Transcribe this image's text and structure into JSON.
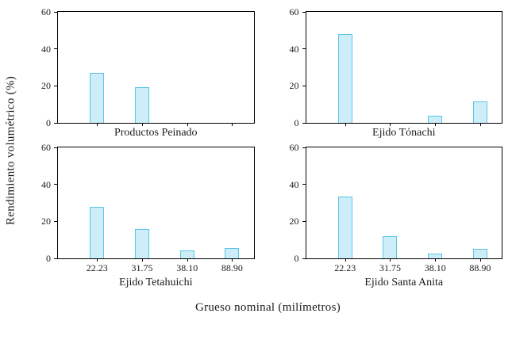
{
  "figure": {
    "ylabel": "Rendimiento volumétrico (%)",
    "xlabel": "Grueso nominal (milímetros)",
    "bar_fill": "#cdeef8",
    "bar_stroke": "#5bc6e8",
    "axis_color": "#000000"
  },
  "chart_data": [
    {
      "type": "bar",
      "title": "Productos Peinado",
      "categories": [
        "22.23",
        "31.75",
        "38.10",
        "88.90"
      ],
      "values": [
        27,
        19.5,
        0,
        0
      ],
      "ylim": [
        0,
        60
      ],
      "yticks": [
        0,
        20,
        40,
        60
      ],
      "x_ticklabels_visible": false,
      "grid": false,
      "legend": false
    },
    {
      "type": "bar",
      "title": "Ejido Tónachi",
      "categories": [
        "22.23",
        "31.75",
        "38.10",
        "88.90"
      ],
      "values": [
        48,
        0,
        4,
        11.5
      ],
      "ylim": [
        0,
        60
      ],
      "yticks": [
        0,
        20,
        40,
        60
      ],
      "x_ticklabels_visible": false,
      "grid": false,
      "legend": false
    },
    {
      "type": "bar",
      "title": "Ejido Tetahuichi",
      "categories": [
        "22.23",
        "31.75",
        "38.10",
        "88.90"
      ],
      "values": [
        28,
        16,
        4.5,
        5.5
      ],
      "ylim": [
        0,
        60
      ],
      "yticks": [
        0,
        20,
        40,
        60
      ],
      "x_ticklabels_visible": true,
      "grid": false,
      "legend": false
    },
    {
      "type": "bar",
      "title": "Ejido Santa Anita",
      "categories": [
        "22.23",
        "31.75",
        "38.10",
        "88.90"
      ],
      "values": [
        33.5,
        12,
        2.5,
        5
      ],
      "ylim": [
        0,
        60
      ],
      "yticks": [
        0,
        20,
        40,
        60
      ],
      "x_ticklabels_visible": true,
      "grid": false,
      "legend": false
    }
  ]
}
